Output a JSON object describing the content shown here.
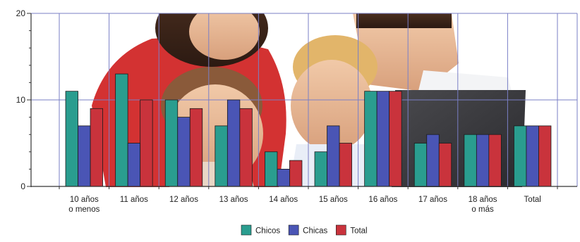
{
  "chart_data": {
    "type": "bar",
    "title": "",
    "xlabel": "",
    "ylabel": "",
    "ylim": [
      0,
      20
    ],
    "yticks": [
      0,
      10,
      20
    ],
    "grid": true,
    "legend_position": "bottom",
    "categories": [
      [
        "10 años",
        "o menos"
      ],
      [
        "11 años"
      ],
      [
        "12 años"
      ],
      [
        "13 años"
      ],
      [
        "14 años"
      ],
      [
        "15 años"
      ],
      [
        "16 años"
      ],
      [
        "17 años"
      ],
      [
        "18 años",
        "o más"
      ],
      [
        "Total"
      ]
    ],
    "series": [
      {
        "name": "Chicos",
        "color": "#2a9d8f",
        "values": [
          11,
          13,
          10,
          7,
          4,
          4,
          11,
          5,
          6,
          7
        ]
      },
      {
        "name": "Chicas",
        "color": "#4a55b5",
        "values": [
          7,
          5,
          8,
          10,
          2,
          7,
          11,
          6,
          6,
          7
        ]
      },
      {
        "name": "Total",
        "color": "#c9333c",
        "values": [
          9,
          10,
          9,
          9,
          3,
          5,
          11,
          5,
          6,
          7
        ]
      }
    ]
  },
  "background": {
    "description_icon": "family-laptop-photo"
  }
}
